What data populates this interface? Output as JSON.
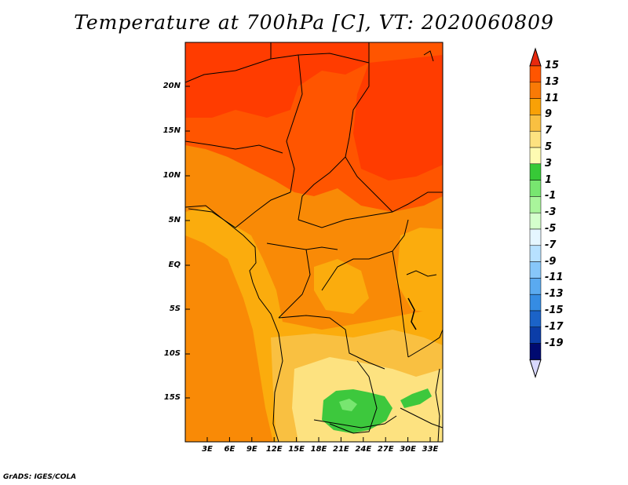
{
  "title": "Temperature at 700hPa [C], VT: 2020060809",
  "credit": "GrADS: IGES/COLA",
  "map": {
    "lat_labels": [
      "20N",
      "15N",
      "10N",
      "5N",
      "EQ",
      "5S",
      "10S",
      "15S"
    ],
    "lon_labels": [
      "3E",
      "6E",
      "9E",
      "12E",
      "15E",
      "18E",
      "21E",
      "24E",
      "27E",
      "30E",
      "33E"
    ]
  },
  "colorbar": {
    "labels": [
      "15",
      "13",
      "11",
      "9",
      "7",
      "5",
      "3",
      "1",
      "-1",
      "-3",
      "-5",
      "-7",
      "-9",
      "-11",
      "-13",
      "-15",
      "-17",
      "-19"
    ],
    "colors": [
      "#e8290e",
      "#ff5500",
      "#f97a06",
      "#f9a106",
      "#f9c041",
      "#fde280",
      "#fefbb2",
      "#37c937",
      "#78e670",
      "#a9f59b",
      "#d4ffcc",
      "#e5f6ff",
      "#b7e1ff",
      "#87c7f9",
      "#5aaaf0",
      "#358ce3",
      "#1b63c8",
      "#0b3da8",
      "#000a70",
      "#d8d8ff"
    ],
    "top_arrow_color": "#e8290e",
    "bottom_arrow_color": "#d8d8ff"
  },
  "colors": {
    "hot": "#ff3c00",
    "warm": "#ff5500",
    "orange": "#f98a06",
    "amber": "#fbac0d",
    "yellow": "#f9c041",
    "pale": "#fde280",
    "green": "#3dc83d",
    "light_green": "#78e670"
  }
}
